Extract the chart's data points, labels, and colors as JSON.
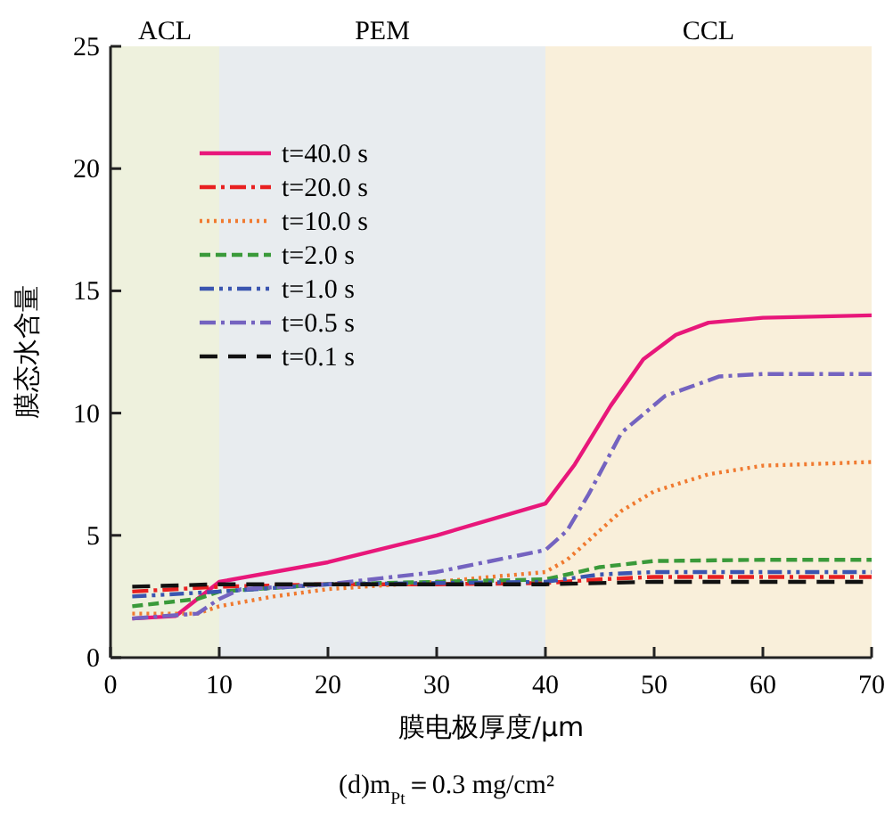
{
  "chart_data": {
    "type": "line",
    "title": "(d)m$_{Pt}$＝0.3 mg/cm²",
    "xlabel": "膜电极厚度/μm",
    "ylabel": "膜态水含量",
    "xlim": [
      0,
      70
    ],
    "xticks": [
      0,
      10,
      20,
      30,
      40,
      50,
      60,
      70
    ],
    "ylim": [
      0,
      25
    ],
    "yticks": [
      0,
      5,
      10,
      15,
      20,
      25
    ],
    "grid": false,
    "legend": "top left",
    "bands": [
      {
        "axis": "x",
        "from": 0,
        "to": 10,
        "label": "ACL",
        "color": "#eef1dd"
      },
      {
        "axis": "x",
        "from": 10,
        "to": 40,
        "label": "PEM",
        "color": "#e8ecef"
      },
      {
        "axis": "x",
        "from": 40,
        "to": 70,
        "label": "CCL",
        "color": "#f9efda"
      }
    ],
    "series": [
      {
        "name": "t=40.0 s",
        "color": "#e8177a",
        "line_style": "solid",
        "x": [
          2,
          6,
          10,
          20,
          30,
          40,
          42.7,
          46,
          49,
          52,
          55,
          60,
          70
        ],
        "values": [
          1.6,
          1.7,
          3.1,
          3.9,
          5.0,
          6.3,
          7.9,
          10.3,
          12.2,
          13.2,
          13.7,
          13.9,
          14.0
        ]
      },
      {
        "name": "t=20.0 s",
        "color": "#e82020",
        "line_style": "dashdot",
        "x": [
          2,
          10,
          20,
          30,
          40,
          45,
          50,
          60,
          70
        ],
        "values": [
          2.7,
          2.9,
          3.0,
          3.0,
          3.05,
          3.2,
          3.3,
          3.3,
          3.3
        ]
      },
      {
        "name": "t=10.0 s",
        "color": "#f07a30",
        "line_style": "dotted",
        "x": [
          2,
          8,
          10,
          15,
          20,
          30,
          40,
          42,
          44,
          47,
          50,
          55,
          60,
          70
        ],
        "values": [
          1.8,
          1.8,
          2.1,
          2.5,
          2.8,
          3.1,
          3.5,
          4.0,
          4.8,
          6.0,
          6.8,
          7.5,
          7.85,
          8.0
        ]
      },
      {
        "name": "t=2.0 s",
        "color": "#3a9a3a",
        "line_style": "dashed",
        "x": [
          2,
          8,
          10,
          20,
          30,
          40,
          45,
          50,
          60,
          70
        ],
        "values": [
          2.1,
          2.4,
          2.7,
          3.0,
          3.1,
          3.2,
          3.7,
          3.95,
          4.0,
          4.0
        ]
      },
      {
        "name": "t=1.0 s",
        "color": "#3a55b0",
        "line_style": "dashdotdot",
        "x": [
          2,
          10,
          20,
          30,
          40,
          45,
          50,
          60,
          70
        ],
        "values": [
          2.5,
          2.7,
          3.0,
          3.05,
          3.1,
          3.4,
          3.5,
          3.5,
          3.5
        ]
      },
      {
        "name": "t=0.5 s",
        "color": "#7463c0",
        "line_style": "dashdot",
        "x": [
          2,
          8,
          10,
          12,
          20,
          30,
          40,
          42,
          44,
          47,
          51,
          56,
          60,
          70
        ],
        "values": [
          1.6,
          1.8,
          2.4,
          2.8,
          3.0,
          3.5,
          4.4,
          5.2,
          6.7,
          9.2,
          10.7,
          11.5,
          11.6,
          11.6
        ]
      },
      {
        "name": "t=0.1 s",
        "color": "#111111",
        "line_style": "longdash",
        "x": [
          2,
          10,
          20,
          30,
          40,
          50,
          60,
          70
        ],
        "values": [
          2.9,
          3.0,
          3.0,
          3.0,
          3.0,
          3.1,
          3.1,
          3.1
        ]
      }
    ]
  }
}
